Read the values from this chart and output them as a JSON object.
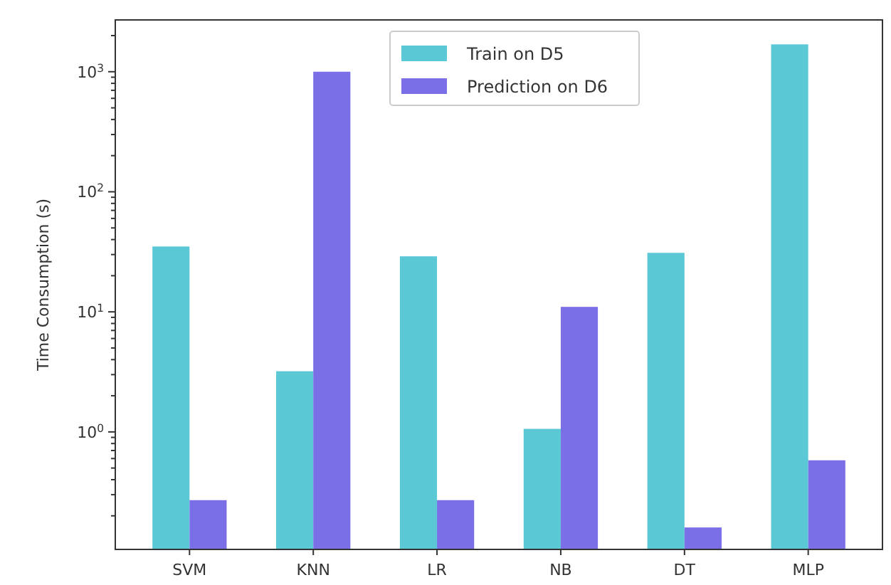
{
  "chart_data": {
    "type": "bar",
    "ylabel": "Time Consumption (s)",
    "categories": [
      "SVM",
      "KNN",
      "LR",
      "NB",
      "DT",
      "MLP"
    ],
    "series": [
      {
        "name": "Train on D5",
        "color": "#5bc8d6",
        "values": [
          35,
          3.2,
          29,
          1.06,
          31,
          1690
        ]
      },
      {
        "name": "Prediction on D6",
        "color": "#7b6fe8",
        "values": [
          0.27,
          1000,
          0.27,
          11,
          0.16,
          0.58
        ]
      }
    ],
    "log": true,
    "ylim": [
      0.105,
      2700
    ],
    "yticks": [
      {
        "value": 0.2,
        "label": null
      },
      {
        "value": 0.3,
        "label": null
      },
      {
        "value": 0.4,
        "label": null
      },
      {
        "value": 0.5,
        "label": null
      },
      {
        "value": 0.6,
        "label": null
      },
      {
        "value": 0.7,
        "label": null
      },
      {
        "value": 0.8,
        "label": null
      },
      {
        "value": 0.9,
        "label": null
      },
      {
        "value": 1,
        "label": "10$^{0}$"
      },
      {
        "value": 2,
        "label": null
      },
      {
        "value": 3,
        "label": null
      },
      {
        "value": 4,
        "label": null
      },
      {
        "value": 5,
        "label": null
      },
      {
        "value": 6,
        "label": null
      },
      {
        "value": 7,
        "label": null
      },
      {
        "value": 8,
        "label": null
      },
      {
        "value": 9,
        "label": null
      },
      {
        "value": 10,
        "label": "10$^{1}$"
      },
      {
        "value": 20,
        "label": null
      },
      {
        "value": 30,
        "label": null
      },
      {
        "value": 40,
        "label": null
      },
      {
        "value": 50,
        "label": null
      },
      {
        "value": 60,
        "label": null
      },
      {
        "value": 70,
        "label": null
      },
      {
        "value": 80,
        "label": null
      },
      {
        "value": 90,
        "label": null
      },
      {
        "value": 100,
        "label": "10$^{2}$"
      },
      {
        "value": 200,
        "label": null
      },
      {
        "value": 300,
        "label": null
      },
      {
        "value": 400,
        "label": null
      },
      {
        "value": 500,
        "label": null
      },
      {
        "value": 600,
        "label": null
      },
      {
        "value": 700,
        "label": null
      },
      {
        "value": 800,
        "label": null
      },
      {
        "value": 900,
        "label": null
      },
      {
        "value": 1000,
        "label": "10$^{3}$"
      },
      {
        "value": 2000,
        "label": null
      }
    ],
    "grid": false,
    "legend": "top"
  }
}
